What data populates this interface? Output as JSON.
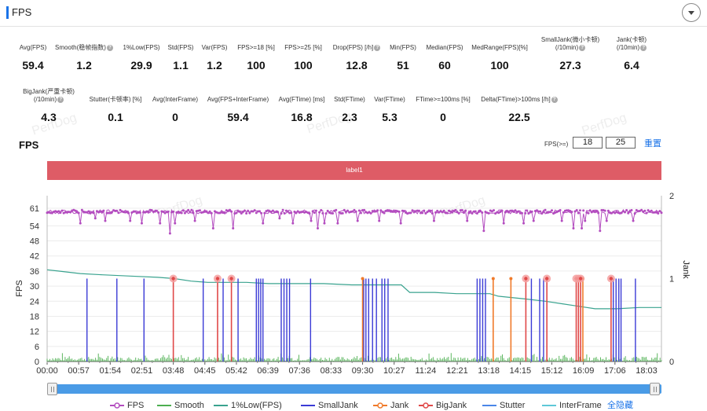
{
  "header": {
    "title": "FPS",
    "collapse_icon": "chevron-down-icon"
  },
  "metrics_row1": [
    {
      "label": "Avg(FPS)",
      "value": "59.4",
      "help": false
    },
    {
      "label": "Smooth(稳帧指数)",
      "value": "1.2",
      "help": true
    },
    {
      "label": "1%Low(FPS)",
      "value": "29.9",
      "help": false
    },
    {
      "label": "Std(FPS)",
      "value": "1.1",
      "help": false
    },
    {
      "label": "Var(FPS)",
      "value": "1.2",
      "help": false
    },
    {
      "label": "FPS>=18 [%]",
      "value": "100",
      "help": false
    },
    {
      "label": "FPS>=25 [%]",
      "value": "100",
      "help": false
    },
    {
      "label": "Drop(FPS) [/h]",
      "value": "12.8",
      "help": true
    },
    {
      "label": "Min(FPS)",
      "value": "51",
      "help": false
    },
    {
      "label": "Median(FPS)",
      "value": "60",
      "help": false
    },
    {
      "label": "MedRange(FPS)[%]",
      "value": "100",
      "help": false
    },
    {
      "label": "SmallJank(微小卡顿)",
      "label2": "(/10min)",
      "value": "27.3",
      "help": true
    },
    {
      "label": "Jank(卡顿)",
      "label2": "(/10min)",
      "value": "6.4",
      "help": true
    }
  ],
  "metrics_row2": [
    {
      "label": "BigJank(严重卡顿)",
      "label2": "(/10min)",
      "value": "4.3",
      "help": true
    },
    {
      "label": "Stutter(卡顿率) [%]",
      "value": "0.1",
      "help": false
    },
    {
      "label": "Avg(InterFrame)",
      "value": "0",
      "help": false
    },
    {
      "label": "Avg(FPS+InterFrame)",
      "value": "59.4",
      "help": false
    },
    {
      "label": "Avg(FTime) [ms]",
      "value": "16.8",
      "help": false
    },
    {
      "label": "Std(FTime)",
      "value": "2.3",
      "help": false
    },
    {
      "label": "Var(FTime)",
      "value": "5.3",
      "help": false
    },
    {
      "label": "FTime>=100ms [%]",
      "value": "0",
      "help": false
    },
    {
      "label": "Delta(FTime)>100ms [/h]",
      "value": "22.5",
      "help": true
    }
  ],
  "watermarks": [
    "PerfDog",
    "PerfDog",
    "PerfDog",
    "PerfDog",
    "PerfDog"
  ],
  "fps_threshold": {
    "label": "FPS(>=)",
    "value1": "18",
    "value2": "25",
    "reset": "重置"
  },
  "chart_data": {
    "type": "line",
    "title": "FPS",
    "annotation_label": "label1",
    "ylabel_left": "FPS",
    "ylabel_right": "Jank",
    "yticks_left": [
      0,
      6,
      12,
      18,
      24,
      30,
      36,
      42,
      48,
      54,
      61
    ],
    "ylim_left": [
      0,
      66
    ],
    "yticks_right": [
      0,
      1,
      2
    ],
    "ylim_right": [
      0,
      2
    ],
    "xticks": [
      "00:00",
      "00:57",
      "01:54",
      "02:51",
      "03:48",
      "04:45",
      "05:42",
      "06:39",
      "07:36",
      "08:33",
      "09:30",
      "10:27",
      "11:24",
      "12:21",
      "13:18",
      "14:15",
      "15:12",
      "16:09",
      "17:06",
      "18:03"
    ],
    "x_unit": "seconds",
    "xlim": [
      0,
      1110
    ],
    "grid": true,
    "series_colors": {
      "FPS": "#b34cbf",
      "Smooth": "#4caf50",
      "1%Low(FPS)": "#3aa38f",
      "SmallJank": "#3b3bd6",
      "Jank": "#f07a2a",
      "BigJank": "#e04848",
      "Stutter": "#4a86e8",
      "InterFrame": "#5ec8d8"
    },
    "fps_dips": [
      {
        "t": 60,
        "fps": 55
      },
      {
        "t": 88,
        "fps": 57
      },
      {
        "t": 105,
        "fps": 56
      },
      {
        "t": 150,
        "fps": 56
      },
      {
        "t": 170,
        "fps": 55
      },
      {
        "t": 205,
        "fps": 55
      },
      {
        "t": 222,
        "fps": 51
      },
      {
        "t": 230,
        "fps": 55
      },
      {
        "t": 268,
        "fps": 56
      },
      {
        "t": 300,
        "fps": 53
      },
      {
        "t": 335,
        "fps": 53
      },
      {
        "t": 390,
        "fps": 55
      },
      {
        "t": 420,
        "fps": 57
      },
      {
        "t": 445,
        "fps": 55
      },
      {
        "t": 478,
        "fps": 56
      },
      {
        "t": 490,
        "fps": 53
      },
      {
        "t": 500,
        "fps": 55
      },
      {
        "t": 525,
        "fps": 55
      },
      {
        "t": 560,
        "fps": 56
      },
      {
        "t": 600,
        "fps": 56
      },
      {
        "t": 640,
        "fps": 55
      },
      {
        "t": 700,
        "fps": 56
      },
      {
        "t": 760,
        "fps": 56
      },
      {
        "t": 790,
        "fps": 52
      },
      {
        "t": 825,
        "fps": 55
      },
      {
        "t": 860,
        "fps": 55
      },
      {
        "t": 880,
        "fps": 56
      },
      {
        "t": 930,
        "fps": 56
      },
      {
        "t": 950,
        "fps": 53
      },
      {
        "t": 965,
        "fps": 53
      },
      {
        "t": 972,
        "fps": 56
      },
      {
        "t": 1000,
        "fps": 52
      },
      {
        "t": 1010,
        "fps": 56
      },
      {
        "t": 1060,
        "fps": 56
      }
    ],
    "low1_series": {
      "x": [
        0,
        20,
        60,
        100,
        150,
        200,
        230,
        260,
        290,
        320,
        360,
        400,
        450,
        500,
        550,
        600,
        640,
        655,
        700,
        740,
        800,
        815,
        860,
        900,
        930,
        960,
        990,
        1030,
        1070,
        1110
      ],
      "y": [
        36.5,
        36,
        35,
        34.5,
        34,
        33.5,
        33,
        32,
        31.5,
        31.5,
        31.5,
        31,
        31,
        31,
        30.5,
        30.5,
        30.5,
        27.5,
        27.5,
        27,
        27,
        26,
        25,
        24,
        23,
        22,
        21,
        21,
        21.5,
        21.5
      ]
    },
    "smalljank": [
      72,
      126,
      175,
      282,
      318,
      345,
      378,
      382,
      386,
      390,
      423,
      428,
      433,
      438,
      476,
      572,
      576,
      581,
      588,
      595,
      605,
      610,
      616,
      777,
      782,
      787,
      792,
      875,
      890,
      897,
      1023,
      1028,
      1033,
      1037,
      1063
    ],
    "jank": [
      570,
      806,
      838,
      968
    ],
    "bigjank": [
      228,
      308,
      333,
      865,
      903,
      956,
      960,
      964,
      1019
    ]
  },
  "legend": [
    {
      "name": "FPS",
      "type": "line-dot",
      "color": "#b34cbf"
    },
    {
      "name": "Smooth",
      "type": "line",
      "color": "#4caf50"
    },
    {
      "name": "1%Low(FPS)",
      "type": "line",
      "color": "#3aa38f"
    },
    {
      "name": "SmallJank",
      "type": "line",
      "color": "#3b3bd6"
    },
    {
      "name": "Jank",
      "type": "line-dot",
      "color": "#f07a2a"
    },
    {
      "name": "BigJank",
      "type": "line-dot",
      "color": "#e04848"
    },
    {
      "name": "Stutter",
      "type": "line",
      "color": "#4a86e8"
    },
    {
      "name": "InterFrame",
      "type": "line",
      "color": "#5ec8d8"
    }
  ],
  "hide_all_label": "全隐藏"
}
